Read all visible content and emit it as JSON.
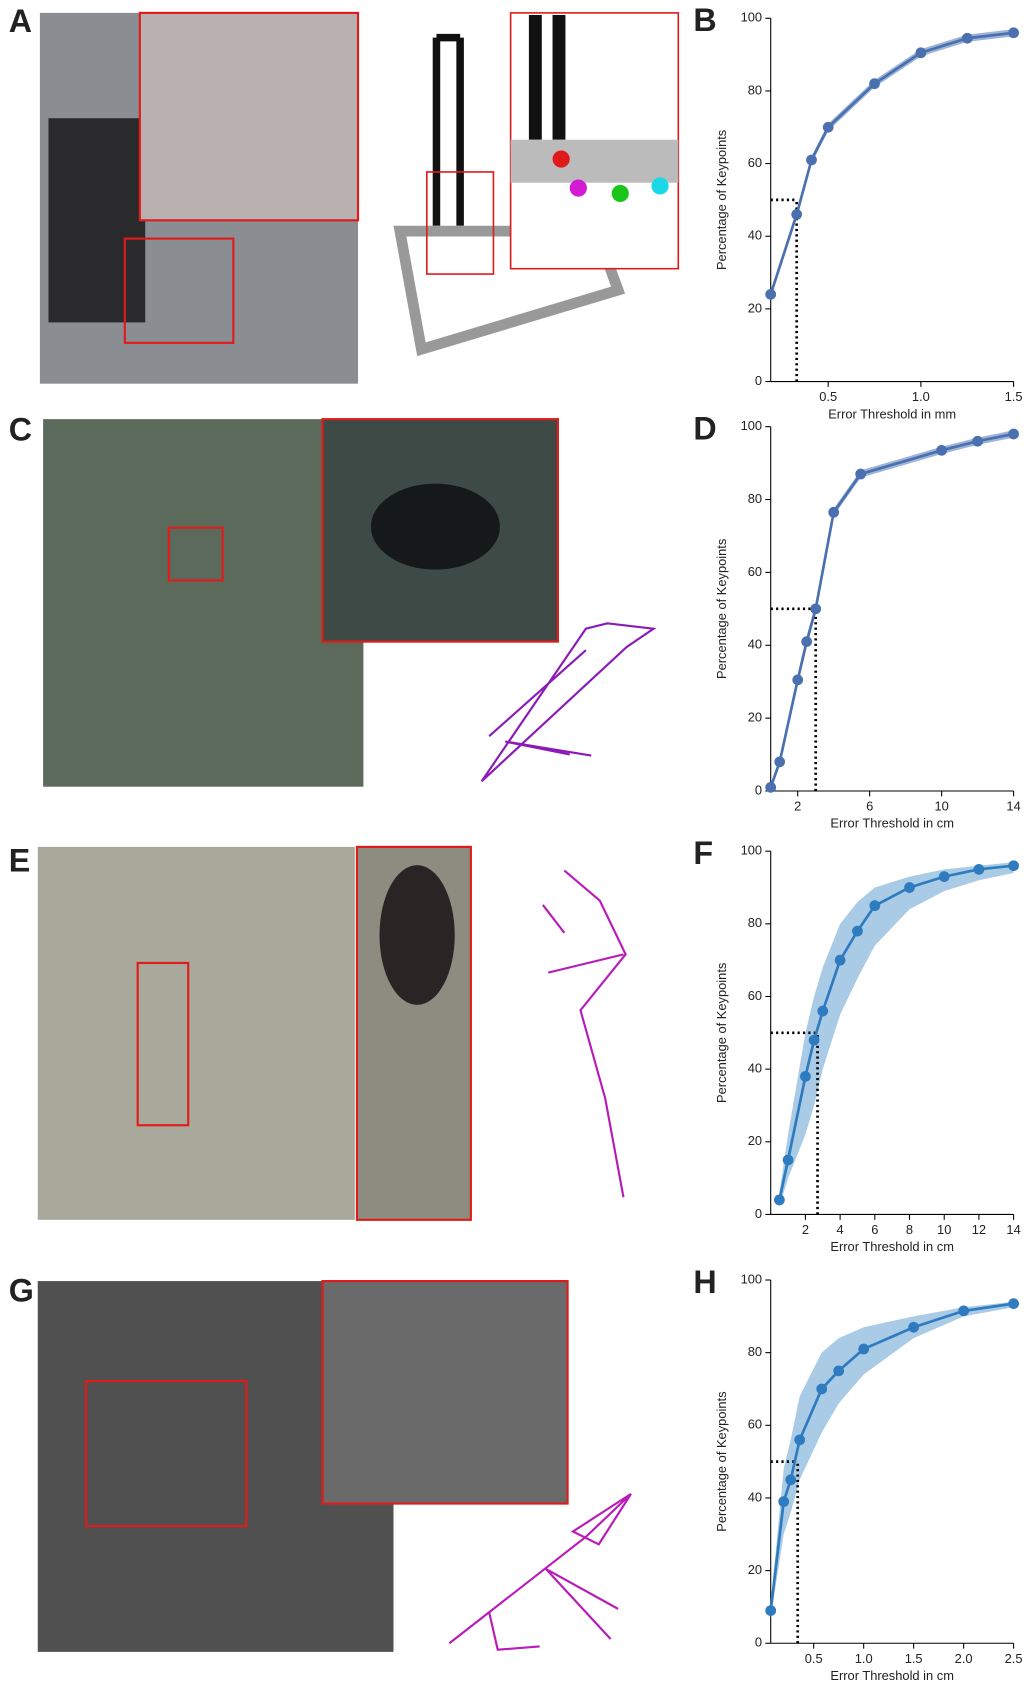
{
  "panel_labels": [
    "A",
    "C",
    "E",
    "G"
  ],
  "chart_data": [
    {
      "type": "line",
      "panel": "B",
      "x_label": "Error Threshold in mm",
      "y_label": "Percentage of Keypoints",
      "x": [
        0.19,
        0.33,
        0.41,
        0.5,
        0.75,
        1,
        1.25,
        1.5
      ],
      "values": [
        24,
        46,
        61,
        70,
        82,
        90.5,
        94.5,
        96
      ],
      "lower": [
        23,
        45,
        60,
        69,
        81,
        89.5,
        93.5,
        95
      ],
      "upper": [
        25,
        47,
        62,
        71,
        83,
        91.5,
        95.5,
        97
      ],
      "color": "#4a70b0",
      "band_color": "#9db4d8",
      "threshold": {
        "x": 0.33,
        "y": 50
      },
      "xlim": [
        0.19,
        1.5
      ],
      "xticks": [
        0.5,
        {
          "value": 1,
          "label": "1.0"
        },
        1.5
      ],
      "ylim": [
        0,
        100
      ],
      "yticks": [
        0,
        20,
        40,
        60,
        80,
        100
      ]
    },
    {
      "type": "line",
      "panel": "D",
      "x_label": "Error Threshold in cm",
      "y_label": "Percentage of Keypoints",
      "x": [
        0.5,
        1,
        2,
        2.5,
        3,
        4,
        5.5,
        10,
        12,
        14
      ],
      "values": [
        1,
        8,
        30.5,
        41,
        50,
        76.5,
        87,
        93.5,
        96,
        98
      ],
      "lower": [
        0,
        7,
        29,
        39.5,
        48.5,
        75.5,
        86,
        92.5,
        95,
        97
      ],
      "upper": [
        2,
        9,
        32,
        42.5,
        51.5,
        77.5,
        88,
        94.5,
        97,
        99
      ],
      "color": "#4a70b0",
      "band_color": "#9db4d8",
      "threshold": {
        "x": 3,
        "y": 50
      },
      "xlim": [
        0.5,
        14
      ],
      "xticks": [
        2,
        6,
        10,
        14
      ],
      "ylim": [
        0,
        100
      ],
      "yticks": [
        0,
        20,
        40,
        60,
        80,
        100
      ]
    },
    {
      "type": "line",
      "panel": "F",
      "x_label": "Error Threshold in cm",
      "y_label": "Percentage of Keypoints",
      "x": [
        0.5,
        1,
        2,
        2.5,
        3,
        4,
        5,
        6,
        8,
        10,
        12,
        14
      ],
      "values": [
        4,
        15,
        38,
        48,
        56,
        70,
        78,
        85,
        90,
        93,
        95,
        96
      ],
      "lower": [
        2,
        10,
        22,
        30,
        40,
        55,
        65,
        74,
        84,
        89,
        92,
        94
      ],
      "upper": [
        6,
        22,
        50,
        60,
        68,
        80,
        86,
        90,
        93,
        95,
        96,
        97
      ],
      "color": "#2f7bbf",
      "band_color": "#a9cbe6",
      "threshold": {
        "x": 2.7,
        "y": 50
      },
      "xlim": [
        0,
        14
      ],
      "xticks": [
        2,
        4,
        6,
        8,
        10,
        12,
        14
      ],
      "ylim": [
        0,
        100
      ],
      "yticks": [
        0,
        20,
        40,
        60,
        80,
        100
      ]
    },
    {
      "type": "line",
      "panel": "H",
      "x_label": "Error Threshold in cm",
      "y_label": "Percentage of Keypoints",
      "x": [
        0.07,
        0.2,
        0.27,
        0.36,
        0.58,
        0.75,
        1,
        1.5,
        2,
        2.5
      ],
      "values": [
        9,
        39,
        45,
        56,
        70,
        75,
        81,
        87,
        91.5,
        93.5
      ],
      "lower": [
        7,
        30,
        36,
        45,
        58,
        66,
        74,
        84,
        90,
        92.5
      ],
      "upper": [
        11,
        48,
        56,
        68,
        80,
        84,
        87,
        90,
        92.5,
        94
      ],
      "color": "#2f7bbf",
      "band_color": "#a9cbe6",
      "threshold": {
        "x": 0.34,
        "y": 50
      },
      "xlim": [
        0.07,
        2.5
      ],
      "xticks": [
        0.5,
        {
          "value": 1,
          "label": "1.0"
        },
        1.5,
        {
          "value": 2,
          "label": "2.0"
        },
        2.5
      ],
      "ylim": [
        0,
        100
      ],
      "yticks": [
        0,
        20,
        40,
        60,
        80,
        100
      ]
    }
  ]
}
